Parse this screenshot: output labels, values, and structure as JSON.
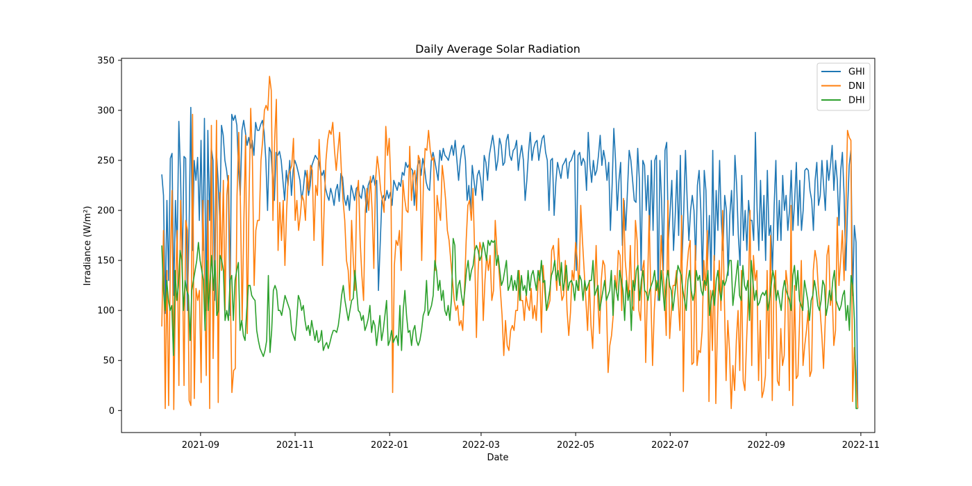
{
  "chart_data": {
    "type": "line",
    "title": "Daily Average Solar Radiation",
    "xlabel": "Date",
    "ylabel": "Irradiance (W/m²)",
    "xlim": [
      "2021-07-12",
      "2022-11-10"
    ],
    "ylim": [
      -22,
      352
    ],
    "yticks": [
      0,
      50,
      100,
      150,
      200,
      250,
      300,
      350
    ],
    "xticks": [
      "2021-09-01",
      "2021-11-01",
      "2022-01-01",
      "2022-03-01",
      "2022-05-01",
      "2022-07-01",
      "2022-09-01",
      "2022-11-01"
    ],
    "xtick_labels": [
      "2021-09",
      "2021-11",
      "2022-01",
      "2022-03",
      "2022-05",
      "2022-07",
      "2022-09",
      "2022-11"
    ],
    "legend_position": "top-right",
    "grid": false,
    "x_start": "2021-08-07",
    "x_end": "2022-10-30",
    "series": [
      {
        "name": "GHI",
        "color": "#1f77b4",
        "values": [
          236,
          215,
          97,
          210,
          130,
          252,
          257,
          115,
          210,
          160,
          289,
          235,
          140,
          254,
          252,
          100,
          182,
          303,
          160,
          250,
          230,
          253,
          190,
          270,
          160,
          292,
          100,
          280,
          190,
          263,
          250,
          110,
          260,
          230,
          190,
          285,
          275,
          250,
          240,
          225,
          95,
          296,
          290,
          295,
          285,
          240,
          215,
          280,
          290,
          278,
          265,
          273,
          262,
          270,
          255,
          288,
          280,
          280,
          286,
          290,
          278,
          250,
          200,
          263,
          258,
          230,
          210,
          258,
          255,
          259,
          250,
          230,
          210,
          240,
          225,
          250,
          215,
          240,
          250,
          245,
          238,
          230,
          210,
          222,
          240,
          232,
          215,
          225,
          245,
          250,
          255,
          252,
          250,
          240,
          235,
          240,
          222,
          215,
          210,
          222,
          215,
          205,
          220,
          226,
          209,
          237,
          233,
          212,
          205,
          215,
          200,
          225,
          218,
          210,
          222,
          224,
          215,
          212,
          225,
          221,
          198,
          225,
          230,
          228,
          235,
          225,
          230,
          120,
          165,
          210,
          215,
          210,
          220,
          212,
          218,
          205,
          230,
          225,
          220,
          228,
          224,
          238,
          235,
          248,
          243,
          246,
          242,
          240,
          205,
          228,
          245,
          250,
          235,
          252,
          243,
          228,
          222,
          220,
          250,
          258,
          250,
          240,
          230,
          260,
          250,
          262,
          255,
          253,
          250,
          258,
          265,
          255,
          270,
          250,
          230,
          250,
          262,
          265,
          250,
          210,
          225,
          200,
          245,
          230,
          215,
          235,
          240,
          230,
          210,
          255,
          248,
          230,
          255,
          265,
          275,
          262,
          240,
          250,
          272,
          265,
          245,
          248,
          270,
          276,
          255,
          250,
          260,
          262,
          270,
          240,
          255,
          265,
          250,
          210,
          230,
          258,
          278,
          250,
          262,
          268,
          270,
          250,
          262,
          272,
          275,
          258,
          250,
          200,
          250,
          252,
          195,
          228,
          248,
          240,
          232,
          245,
          248,
          252,
          232,
          248,
          250,
          255,
          260,
          140,
          255,
          258,
          245,
          252,
          248,
          220,
          278,
          245,
          228,
          250,
          235,
          240,
          255,
          275,
          245,
          260,
          250,
          230,
          248,
          180,
          225,
          282,
          250,
          200,
          230,
          248,
          165,
          210,
          180,
          220,
          260,
          250,
          230,
          210,
          208,
          262,
          230,
          140,
          250,
          245,
          200,
          235,
          180,
          250,
          180,
          250,
          255,
          110,
          250,
          210,
          140,
          260,
          268,
          170,
          200,
          230,
          160,
          195,
          240,
          175,
          255,
          150,
          200,
          260,
          210,
          170,
          200,
          215,
          200,
          150,
          225,
          240,
          200,
          130,
          240,
          220,
          150,
          195,
          130,
          260,
          150,
          220,
          180,
          250,
          190,
          160,
          215,
          200,
          135,
          195,
          220,
          175,
          255,
          225,
          175,
          145,
          235,
          170,
          200,
          160,
          210,
          190,
          190,
          170,
          278,
          200,
          160,
          230,
          170,
          215,
          150,
          240,
          175,
          185,
          140,
          205,
          250,
          170,
          210,
          170,
          235,
          200,
          215,
          180,
          200,
          240,
          180,
          210,
          248,
          185,
          230,
          180,
          200,
          240,
          242,
          240,
          220,
          210,
          180,
          230,
          248,
          205,
          215,
          250,
          225,
          200,
          250,
          230,
          245,
          265,
          220,
          250,
          230,
          185,
          240,
          258,
          215,
          140,
          200,
          245,
          260,
          115,
          185,
          168,
          2
        ]
      },
      {
        "name": "DNI",
        "color": "#ff7f0e",
        "values": [
          84,
          180,
          2,
          140,
          5,
          150,
          220,
          1,
          120,
          180,
          25,
          210,
          150,
          25,
          190,
          180,
          10,
          5,
          296,
          12,
          122,
          110,
          120,
          28,
          210,
          130,
          35,
          210,
          2,
          285,
          52,
          160,
          290,
          8,
          218,
          140,
          230,
          100,
          215,
          235,
          130,
          18,
          40,
          42,
          215,
          278,
          205,
          90,
          190,
          275,
          77,
          210,
          302,
          250,
          125,
          180,
          190,
          190,
          250,
          270,
          300,
          305,
          300,
          334,
          320,
          190,
          270,
          311,
          160,
          208,
          170,
          210,
          145,
          200,
          235,
          240,
          245,
          272,
          190,
          210,
          180,
          195,
          215,
          210,
          190,
          240,
          220,
          245,
          240,
          170,
          225,
          215,
          271,
          235,
          145,
          205,
          250,
          270,
          280,
          276,
          288,
          260,
          240,
          260,
          278,
          240,
          210,
          190,
          150,
          140,
          110,
          190,
          150,
          120,
          215,
          230,
          170,
          135,
          110,
          200,
          222,
          200,
          234,
          200,
          142,
          230,
          254,
          240,
          220,
          210,
          198,
          284,
          255,
          272,
          225,
          18,
          145,
          170,
          165,
          180,
          140,
          230,
          212,
          200,
          198,
          264,
          210,
          235,
          240,
          200,
          255,
          250,
          150,
          227,
          262,
          260,
          280,
          260,
          250,
          253,
          140,
          215,
          200,
          190,
          245,
          230,
          210,
          180,
          170,
          150,
          130,
          110,
          100,
          105,
          85,
          90,
          80,
          120,
          170,
          205,
          210,
          190,
          222,
          155,
          73,
          140,
          168,
          160,
          90,
          130,
          155,
          140,
          155,
          110,
          120,
          190,
          160,
          145,
          120,
          95,
          55,
          90,
          65,
          60,
          80,
          85,
          80,
          100,
          100,
          140,
          110,
          110,
          90,
          115,
          105,
          100,
          122,
          92,
          105,
          90,
          125,
          140,
          78,
          145,
          118,
          100,
          104,
          110,
          160,
          165,
          145,
          120,
          172,
          130,
          110,
          115,
          150,
          100,
          75,
          98,
          140,
          130,
          168,
          150,
          120,
          205,
          170,
          140,
          110,
          80,
          130,
          85,
          62,
          115,
          165,
          110,
          77,
          130,
          150,
          145,
          110,
          38,
          65,
          75,
          95,
          135,
          120,
          160,
          155,
          100,
          212,
          150,
          130,
          115,
          165,
          105,
          100,
          190,
          170,
          100,
          90,
          140,
          150,
          48,
          120,
          195,
          115,
          45,
          100,
          130,
          120,
          110,
          175,
          140,
          120,
          75,
          210,
          72,
          100,
          125,
          125,
          140,
          110,
          80,
          195,
          19,
          120,
          140,
          160,
          170,
          46,
          48,
          165,
          45,
          60,
          58,
          80,
          150,
          120,
          180,
          9,
          120,
          60,
          155,
          7,
          90,
          150,
          100,
          200,
          110,
          30,
          90,
          60,
          2,
          45,
          20,
          70,
          100,
          40,
          140,
          30,
          20,
          70,
          115,
          200,
          45,
          155,
          130,
          140,
          30,
          90,
          13,
          20,
          35,
          140,
          52,
          175,
          10,
          125,
          140,
          30,
          25,
          82,
          45,
          55,
          140,
          125,
          20,
          205,
          5,
          125,
          32,
          35,
          90,
          150,
          45,
          65,
          80,
          100,
          34,
          40,
          140,
          160,
          150,
          120,
          100,
          75,
          42,
          90,
          155,
          165,
          105,
          120,
          65,
          80,
          193,
          125,
          150,
          180,
          130,
          195,
          280,
          273,
          270,
          9,
          63,
          40,
          2
        ]
      },
      {
        "name": "DHI",
        "color": "#2ca02c",
        "values": [
          165,
          120,
          100,
          130,
          110,
          100,
          105,
          55,
          140,
          110,
          125,
          160,
          150,
          100,
          130,
          120,
          115,
          70,
          120,
          130,
          140,
          150,
          168,
          150,
          140,
          130,
          80,
          150,
          100,
          130,
          155,
          120,
          150,
          95,
          100,
          155,
          150,
          140,
          90,
          100,
          90,
          130,
          135,
          90,
          130,
          140,
          148,
          80,
          90,
          75,
          70,
          100,
          125,
          125,
          115,
          112,
          110,
          80,
          70,
          62,
          58,
          54,
          60,
          70,
          135,
          58,
          80,
          120,
          125,
          120,
          100,
          100,
          95,
          105,
          115,
          110,
          105,
          100,
          80,
          75,
          70,
          90,
          115,
          110,
          100,
          105,
          90,
          80,
          85,
          75,
          90,
          80,
          70,
          80,
          68,
          70,
          80,
          60,
          65,
          68,
          62,
          68,
          75,
          80,
          80,
          78,
          85,
          98,
          115,
          125,
          110,
          100,
          90,
          100,
          110,
          112,
          140,
          120,
          100,
          98,
          90,
          95,
          80,
          85,
          92,
          105,
          78,
          90,
          85,
          65,
          80,
          95,
          70,
          80,
          95,
          110,
          65,
          70,
          80,
          68,
          72,
          75,
          65,
          105,
          60,
          100,
          120,
          95,
          78,
          80,
          65,
          80,
          85,
          70,
          65,
          70,
          80,
          95,
          100,
          130,
          95,
          100,
          105,
          115,
          150,
          140,
          120,
          130,
          110,
          120,
          100,
          95,
          105,
          90,
          112,
          172,
          165,
          110,
          125,
          130,
          115,
          105,
          120,
          140,
          150,
          130,
          140,
          145,
          160,
          165,
          160,
          150,
          155,
          168,
          160,
          150,
          170,
          165,
          170,
          168,
          170,
          145,
          155,
          140,
          125,
          130,
          140,
          150,
          120,
          125,
          135,
          120,
          130,
          120,
          140,
          110,
          135,
          120,
          125,
          115,
          140,
          120,
          135,
          140,
          130,
          120,
          140,
          130,
          150,
          128,
          130,
          100,
          110,
          120,
          135,
          140,
          150,
          130,
          140,
          125,
          148,
          120,
          130,
          145,
          120,
          128,
          130,
          125,
          110,
          130,
          120,
          135,
          130,
          110,
          130,
          120,
          125,
          130,
          130,
          150,
          115,
          120,
          125,
          100,
          110,
          120,
          130,
          110,
          115,
          120,
          140,
          95,
          130,
          120,
          110,
          140,
          130,
          120,
          90,
          130,
          110,
          120,
          80,
          130,
          120,
          140,
          145,
          110,
          130,
          140,
          120,
          118,
          110,
          120,
          125,
          130,
          140,
          120,
          130,
          110,
          140,
          120,
          100,
          130,
          140,
          125,
          120,
          100,
          115,
          130,
          145,
          140,
          135,
          120,
          110,
          100,
          130,
          140,
          120,
          110,
          118,
          140,
          130,
          135,
          120,
          115,
          130,
          125,
          140,
          95,
          110,
          120,
          105,
          130,
          140,
          120,
          110,
          130,
          125,
          130,
          140,
          150,
          150,
          105,
          120,
          135,
          150,
          115,
          110,
          145,
          125,
          120,
          130,
          90,
          150,
          130,
          110,
          120,
          105,
          108,
          115,
          118,
          115,
          120,
          100,
          110,
          125,
          140,
          130,
          110,
          120,
          110,
          100,
          120,
          130,
          120,
          115,
          110,
          100,
          135,
          145,
          120,
          140,
          110,
          105,
          100,
          130,
          120,
          110,
          90,
          110,
          115,
          130,
          120,
          105,
          100,
          110,
          130,
          125,
          95,
          105,
          120,
          110,
          130,
          140,
          110,
          105,
          100,
          105,
          115,
          120,
          90,
          105,
          80,
          135,
          125,
          90,
          2,
          2
        ]
      }
    ]
  }
}
